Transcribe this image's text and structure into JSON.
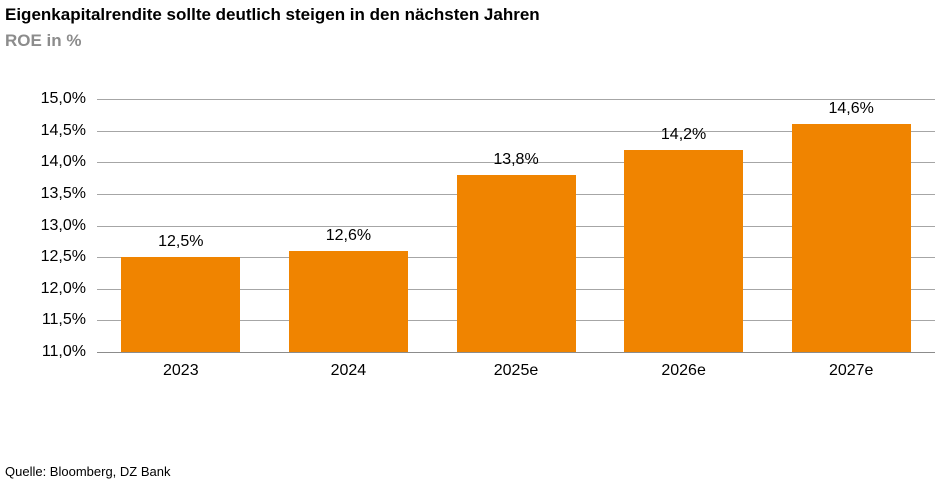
{
  "header": {
    "title": "Eigenkapitalrendite sollte deutlich steigen in den nächsten Jahren",
    "subtitle": "ROE in %"
  },
  "footer": {
    "source": "Quelle: Bloomberg, DZ Bank"
  },
  "colors": {
    "bar": "#F08400",
    "gridline": "#A6A6A6",
    "baseline": "#8C8C8C",
    "title": "#000000",
    "subtitle": "#8C8C8C",
    "labels": "#000000"
  },
  "chart_data": {
    "type": "bar",
    "title": "Eigenkapitalrendite sollte deutlich steigen in den nächsten Jahren",
    "subtitle": "ROE in %",
    "xlabel": "",
    "ylabel": "ROE in %",
    "categories": [
      "2023",
      "2024",
      "2025e",
      "2026e",
      "2027e"
    ],
    "values": [
      12.5,
      12.6,
      13.8,
      14.2,
      14.6
    ],
    "value_labels": [
      "12,5%",
      "12,6%",
      "13,8%",
      "14,2%",
      "14,6%"
    ],
    "ylim": [
      11.0,
      15.0
    ],
    "ytick_step": 0.5,
    "ytick_labels": [
      "11,0%",
      "11,5%",
      "12,0%",
      "12,5%",
      "13,0%",
      "13,5%",
      "14,0%",
      "14,5%",
      "15,0%"
    ],
    "grid": true,
    "legend": "none",
    "bar_color": "#F08400",
    "source": "Quelle: Bloomberg, DZ Bank"
  }
}
